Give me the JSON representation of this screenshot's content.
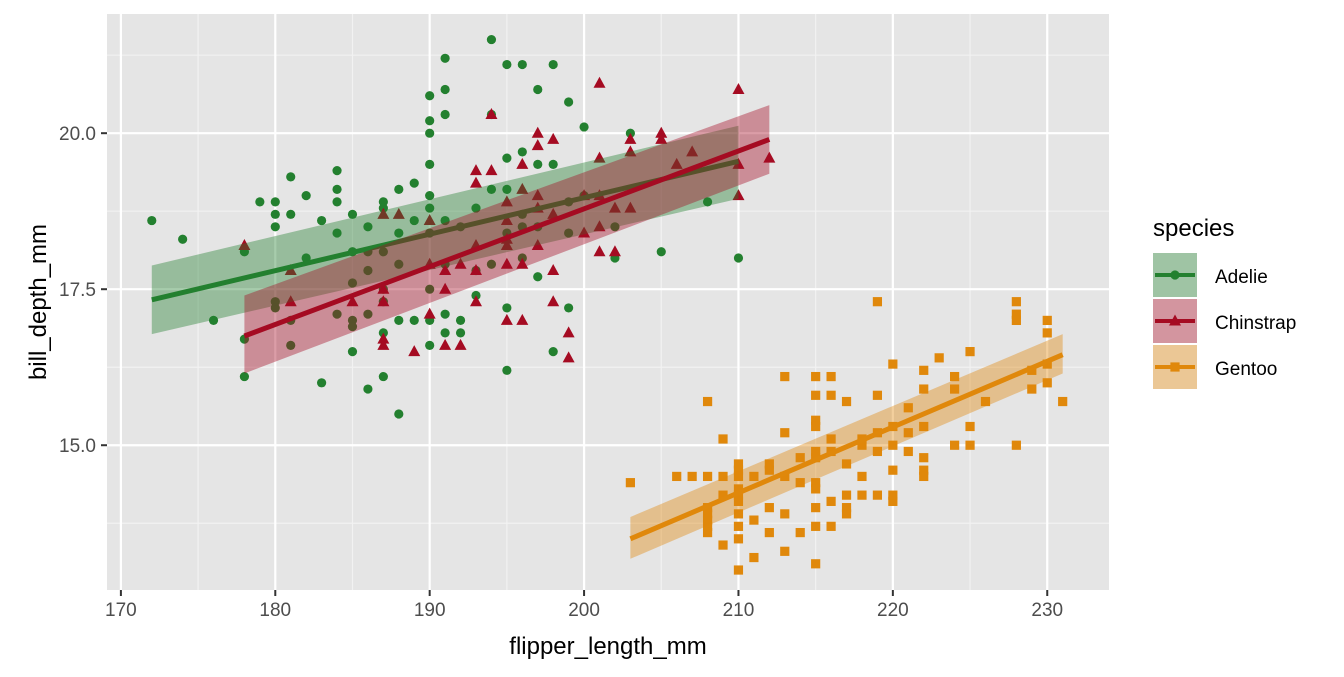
{
  "chart_data": {
    "type": "scatter",
    "title": "",
    "xlabel": "flipper_length_mm",
    "ylabel": "bill_depth_mm",
    "xlim": [
      169.1,
      234.0
    ],
    "ylim": [
      12.68,
      21.91
    ],
    "x_ticks": [
      170,
      180,
      190,
      200,
      210,
      220,
      230
    ],
    "x_tick_labels": [
      "170",
      "180",
      "190",
      "200",
      "210",
      "220",
      "230"
    ],
    "y_ticks": [
      15.0,
      17.5,
      20.0
    ],
    "y_tick_labels": [
      "15.0",
      "17.5",
      "20.0"
    ],
    "grid": true,
    "legend": {
      "title": "species",
      "placement": "right"
    },
    "series": [
      {
        "name": "Adelie",
        "color": "#23802f",
        "marker": "circle",
        "fit": {
          "x": [
            172,
            210
          ],
          "y": [
            17.33,
            19.55
          ],
          "lower": [
            16.78,
            18.95
          ],
          "upper": [
            17.88,
            20.12
          ]
        },
        "points": [
          [
            172,
            18.6
          ],
          [
            174,
            18.3
          ],
          [
            176,
            17.0
          ],
          [
            178,
            18.1
          ],
          [
            178,
            16.7
          ],
          [
            178,
            16.1
          ],
          [
            179,
            18.9
          ],
          [
            180,
            18.9
          ],
          [
            180,
            18.7
          ],
          [
            180,
            18.5
          ],
          [
            180,
            17.3
          ],
          [
            180,
            17.2
          ],
          [
            181,
            19.3
          ],
          [
            181,
            18.7
          ],
          [
            181,
            17.0
          ],
          [
            181,
            16.6
          ],
          [
            182,
            19.0
          ],
          [
            182,
            18.0
          ],
          [
            183,
            18.6
          ],
          [
            183,
            16.0
          ],
          [
            184,
            19.4
          ],
          [
            184,
            19.1
          ],
          [
            184,
            18.9
          ],
          [
            184,
            18.4
          ],
          [
            184,
            17.1
          ],
          [
            185,
            18.7
          ],
          [
            185,
            18.1
          ],
          [
            185,
            17.6
          ],
          [
            185,
            17.0
          ],
          [
            185,
            16.9
          ],
          [
            185,
            16.5
          ],
          [
            186,
            18.5
          ],
          [
            186,
            18.1
          ],
          [
            186,
            17.8
          ],
          [
            186,
            17.1
          ],
          [
            186,
            15.9
          ],
          [
            187,
            18.9
          ],
          [
            187,
            18.8
          ],
          [
            187,
            18.1
          ],
          [
            187,
            17.5
          ],
          [
            187,
            17.3
          ],
          [
            187,
            16.8
          ],
          [
            187,
            16.1
          ],
          [
            188,
            19.1
          ],
          [
            188,
            18.4
          ],
          [
            188,
            17.9
          ],
          [
            188,
            17.0
          ],
          [
            188,
            15.5
          ],
          [
            189,
            19.2
          ],
          [
            189,
            18.6
          ],
          [
            189,
            17.0
          ],
          [
            190,
            20.6
          ],
          [
            190,
            20.2
          ],
          [
            190,
            20.0
          ],
          [
            190,
            19.5
          ],
          [
            190,
            19.0
          ],
          [
            190,
            18.8
          ],
          [
            190,
            18.4
          ],
          [
            190,
            17.5
          ],
          [
            190,
            17.0
          ],
          [
            190,
            16.6
          ],
          [
            191,
            21.2
          ],
          [
            191,
            20.7
          ],
          [
            191,
            20.3
          ],
          [
            191,
            18.6
          ],
          [
            191,
            17.9
          ],
          [
            191,
            17.1
          ],
          [
            191,
            16.8
          ],
          [
            192,
            18.5
          ],
          [
            192,
            17.0
          ],
          [
            192,
            16.8
          ],
          [
            193,
            18.8
          ],
          [
            193,
            17.8
          ],
          [
            193,
            17.4
          ],
          [
            194,
            21.5
          ],
          [
            194,
            20.3
          ],
          [
            194,
            19.1
          ],
          [
            194,
            17.9
          ],
          [
            195,
            21.1
          ],
          [
            195,
            19.6
          ],
          [
            195,
            19.1
          ],
          [
            195,
            18.4
          ],
          [
            195,
            17.2
          ],
          [
            195,
            16.2
          ],
          [
            196,
            21.1
          ],
          [
            196,
            19.7
          ],
          [
            196,
            18.7
          ],
          [
            196,
            18.5
          ],
          [
            196,
            18.0
          ],
          [
            197,
            20.7
          ],
          [
            197,
            19.5
          ],
          [
            197,
            18.5
          ],
          [
            197,
            17.7
          ],
          [
            198,
            21.1
          ],
          [
            198,
            19.5
          ],
          [
            198,
            16.5
          ],
          [
            199,
            20.5
          ],
          [
            199,
            18.9
          ],
          [
            199,
            18.4
          ],
          [
            199,
            17.2
          ],
          [
            200,
            20.1
          ],
          [
            200,
            19.0
          ],
          [
            202,
            18.0
          ],
          [
            202,
            18.5
          ],
          [
            203,
            20.0
          ],
          [
            205,
            18.1
          ],
          [
            208,
            18.9
          ],
          [
            210,
            18.0
          ]
        ]
      },
      {
        "name": "Chinstrap",
        "color": "#a50b22",
        "marker": "triangle",
        "fit": {
          "x": [
            178,
            212
          ],
          "y": [
            16.75,
            19.9
          ],
          "lower": [
            16.15,
            19.35
          ],
          "upper": [
            17.4,
            20.45
          ]
        },
        "points": [
          [
            178,
            18.2
          ],
          [
            181,
            17.8
          ],
          [
            181,
            17.3
          ],
          [
            185,
            17.3
          ],
          [
            187,
            18.7
          ],
          [
            188,
            18.7
          ],
          [
            187,
            17.5
          ],
          [
            187,
            17.3
          ],
          [
            187,
            16.7
          ],
          [
            187,
            16.6
          ],
          [
            189,
            16.5
          ],
          [
            190,
            18.6
          ],
          [
            190,
            17.9
          ],
          [
            190,
            17.1
          ],
          [
            191,
            17.8
          ],
          [
            191,
            17.5
          ],
          [
            191,
            16.6
          ],
          [
            192,
            17.9
          ],
          [
            192,
            16.6
          ],
          [
            193,
            19.4
          ],
          [
            193,
            19.2
          ],
          [
            193,
            18.2
          ],
          [
            193,
            17.8
          ],
          [
            193,
            17.3
          ],
          [
            194,
            20.3
          ],
          [
            194,
            19.4
          ],
          [
            195,
            18.9
          ],
          [
            195,
            18.6
          ],
          [
            195,
            18.3
          ],
          [
            195,
            18.2
          ],
          [
            195,
            17.9
          ],
          [
            195,
            17.0
          ],
          [
            196,
            19.5
          ],
          [
            196,
            19.1
          ],
          [
            196,
            17.9
          ],
          [
            196,
            17.0
          ],
          [
            197,
            20.0
          ],
          [
            197,
            19.8
          ],
          [
            197,
            19.0
          ],
          [
            197,
            18.8
          ],
          [
            197,
            18.2
          ],
          [
            198,
            19.9
          ],
          [
            198,
            18.7
          ],
          [
            198,
            17.8
          ],
          [
            198,
            17.3
          ],
          [
            199,
            16.8
          ],
          [
            199,
            16.4
          ],
          [
            200,
            19.0
          ],
          [
            200,
            18.4
          ],
          [
            201,
            20.8
          ],
          [
            201,
            19.6
          ],
          [
            201,
            19.0
          ],
          [
            201,
            18.5
          ],
          [
            201,
            18.1
          ],
          [
            202,
            18.8
          ],
          [
            202,
            18.1
          ],
          [
            203,
            19.9
          ],
          [
            203,
            19.7
          ],
          [
            203,
            18.8
          ],
          [
            205,
            20.0
          ],
          [
            205,
            19.9
          ],
          [
            206,
            19.5
          ],
          [
            207,
            19.7
          ],
          [
            210,
            20.7
          ],
          [
            210,
            19.5
          ],
          [
            210,
            19.0
          ],
          [
            212,
            19.6
          ]
        ]
      },
      {
        "name": "Gentoo",
        "color": "#e0880b",
        "marker": "square",
        "fit": {
          "x": [
            203,
            231
          ],
          "y": [
            13.5,
            16.45
          ],
          "lower": [
            13.18,
            16.15
          ],
          "upper": [
            13.85,
            16.78
          ]
        },
        "points": [
          [
            203,
            14.4
          ],
          [
            208,
            15.7
          ],
          [
            208,
            14.5
          ],
          [
            207,
            14.5
          ],
          [
            206,
            14.5
          ],
          [
            209,
            15.1
          ],
          [
            209,
            14.5
          ],
          [
            208,
            13.9
          ],
          [
            208,
            13.8
          ],
          [
            208,
            13.7
          ],
          [
            208,
            13.6
          ],
          [
            208,
            14.0
          ],
          [
            209,
            13.4
          ],
          [
            209,
            14.2
          ],
          [
            210,
            14.7
          ],
          [
            210,
            14.6
          ],
          [
            210,
            14.5
          ],
          [
            210,
            14.2
          ],
          [
            210,
            14.1
          ],
          [
            210,
            14.3
          ],
          [
            210,
            13.9
          ],
          [
            210,
            13.7
          ],
          [
            210,
            13.5
          ],
          [
            210,
            13.0
          ],
          [
            211,
            14.5
          ],
          [
            211,
            13.2
          ],
          [
            211,
            13.8
          ],
          [
            212,
            14.6
          ],
          [
            212,
            14.7
          ],
          [
            212,
            13.6
          ],
          [
            212,
            14.0
          ],
          [
            213,
            15.2
          ],
          [
            213,
            16.1
          ],
          [
            213,
            14.5
          ],
          [
            213,
            13.9
          ],
          [
            213,
            13.3
          ],
          [
            214,
            14.8
          ],
          [
            214,
            14.4
          ],
          [
            214,
            13.6
          ],
          [
            215,
            16.1
          ],
          [
            215,
            15.8
          ],
          [
            215,
            15.4
          ],
          [
            215,
            15.3
          ],
          [
            215,
            14.9
          ],
          [
            215,
            14.8
          ],
          [
            215,
            14.4
          ],
          [
            215,
            14.3
          ],
          [
            215,
            14.0
          ],
          [
            215,
            13.7
          ],
          [
            215,
            13.1
          ],
          [
            216,
            16.1
          ],
          [
            216,
            15.8
          ],
          [
            216,
            15.1
          ],
          [
            216,
            14.9
          ],
          [
            216,
            14.1
          ],
          [
            216,
            13.7
          ],
          [
            217,
            15.7
          ],
          [
            217,
            14.7
          ],
          [
            217,
            14.2
          ],
          [
            217,
            14.0
          ],
          [
            217,
            13.9
          ],
          [
            218,
            15.0
          ],
          [
            218,
            15.1
          ],
          [
            218,
            14.5
          ],
          [
            218,
            14.2
          ],
          [
            219,
            15.8
          ],
          [
            219,
            17.3
          ],
          [
            219,
            15.2
          ],
          [
            219,
            14.9
          ],
          [
            219,
            14.2
          ],
          [
            220,
            16.3
          ],
          [
            220,
            15.3
          ],
          [
            220,
            15.0
          ],
          [
            220,
            14.6
          ],
          [
            220,
            14.1
          ],
          [
            220,
            14.2
          ],
          [
            221,
            15.6
          ],
          [
            221,
            14.9
          ],
          [
            221,
            15.2
          ],
          [
            222,
            16.2
          ],
          [
            222,
            15.9
          ],
          [
            222,
            15.3
          ],
          [
            222,
            14.8
          ],
          [
            222,
            14.6
          ],
          [
            222,
            14.5
          ],
          [
            223,
            16.4
          ],
          [
            224,
            16.1
          ],
          [
            224,
            15.9
          ],
          [
            224,
            15.0
          ],
          [
            225,
            15.3
          ],
          [
            225,
            16.5
          ],
          [
            225,
            15.0
          ],
          [
            226,
            15.7
          ],
          [
            228,
            17.3
          ],
          [
            228,
            17.1
          ],
          [
            228,
            17.0
          ],
          [
            228,
            15.0
          ],
          [
            229,
            16.2
          ],
          [
            229,
            15.9
          ],
          [
            230,
            17.0
          ],
          [
            230,
            16.8
          ],
          [
            230,
            16.3
          ],
          [
            230,
            16.0
          ],
          [
            231,
            15.7
          ]
        ]
      }
    ]
  }
}
